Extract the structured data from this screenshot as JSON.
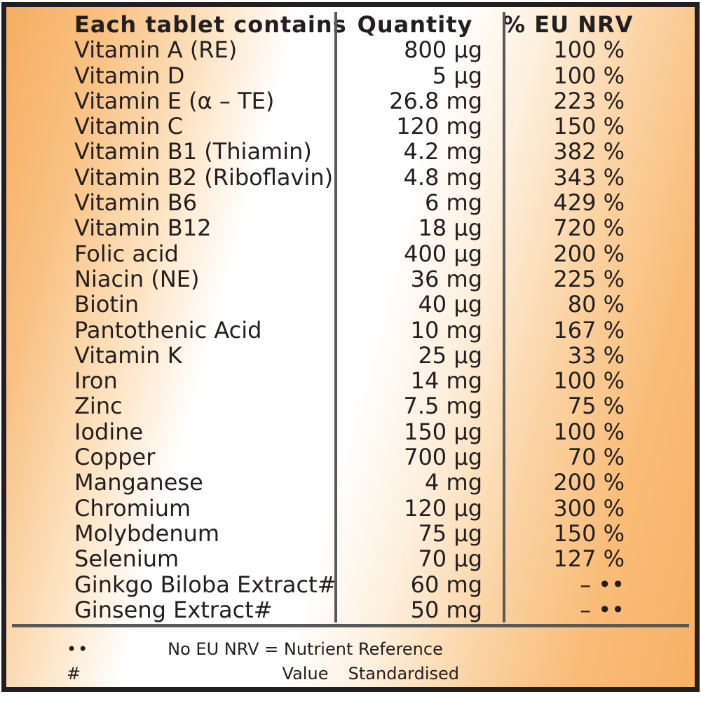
{
  "table": {
    "columns": {
      "name": "Each tablet contains",
      "quantity": "Quantity",
      "nrv": "% EU NRV"
    },
    "rows": [
      {
        "name": "Vitamin A (RE)",
        "quantity": "800 µg",
        "nrv": "100 %"
      },
      {
        "name": "Vitamin D",
        "quantity": "5 µg",
        "nrv": "100 %"
      },
      {
        "name": "Vitamin E (α – TE)",
        "quantity": "26.8 mg",
        "nrv": "223 %"
      },
      {
        "name": "Vitamin C",
        "quantity": "120 mg",
        "nrv": "150 %"
      },
      {
        "name": "Vitamin B1 (Thiamin)",
        "quantity": "4.2 mg",
        "nrv": "382 %"
      },
      {
        "name": "Vitamin B2 (Riboflavin)",
        "quantity": "4.8 mg",
        "nrv": "343 %"
      },
      {
        "name": "Vitamin B6",
        "quantity": "6 mg",
        "nrv": "429 %"
      },
      {
        "name": "Vitamin B12",
        "quantity": "18 µg",
        "nrv": "720 %"
      },
      {
        "name": "Folic acid",
        "quantity": "400 µg",
        "nrv": "200 %"
      },
      {
        "name": "Niacin (NE)",
        "quantity": "36 mg",
        "nrv": "225 %"
      },
      {
        "name": "Biotin",
        "quantity": "40 µg",
        "nrv": "80 %"
      },
      {
        "name": "Pantothenic Acid",
        "quantity": "10 mg",
        "nrv": "167 %"
      },
      {
        "name": "Vitamin K",
        "quantity": "25 µg",
        "nrv": "33 %"
      },
      {
        "name": "Iron",
        "quantity": "14 mg",
        "nrv": "100 %"
      },
      {
        "name": "Zinc",
        "quantity": "7.5 mg",
        "nrv": "75 %"
      },
      {
        "name": "Iodine",
        "quantity": "150 µg",
        "nrv": "100 %"
      },
      {
        "name": "Copper",
        "quantity": "700 µg",
        "nrv": "70 %"
      },
      {
        "name": "Manganese",
        "quantity": "4 mg",
        "nrv": "200 %"
      },
      {
        "name": "Chromium",
        "quantity": "120 µg",
        "nrv": "300 %"
      },
      {
        "name": "Molybdenum",
        "quantity": "75 µg",
        "nrv": "150 %"
      },
      {
        "name": "Selenium",
        "quantity": "70 µg",
        "nrv": "127 %"
      },
      {
        "name": "Ginkgo Biloba Extract#",
        "quantity": "60 mg",
        "nrv": "– ••"
      },
      {
        "name": "Ginseng Extract#",
        "quantity": "50 mg",
        "nrv": "– ••"
      }
    ]
  },
  "footnotes": [
    {
      "symbol": "••",
      "text": "No EU NRV = Nutrient Reference Value"
    },
    {
      "symbol": "#",
      "text": "Standardised"
    }
  ],
  "colors": {
    "background_orange": "#F9BB74",
    "background_white": "#FFFFFF",
    "text": "#231F20",
    "divider_gray": "#58595B",
    "border_black": "#231F20"
  }
}
